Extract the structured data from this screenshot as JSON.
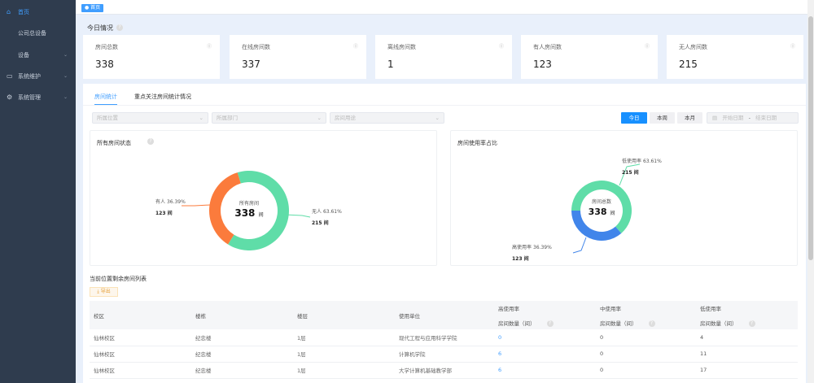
{
  "sidebar": {
    "items": [
      {
        "label": "首页",
        "icon": "home-icon",
        "active": true
      },
      {
        "label": "公司总设备"
      },
      {
        "label": "设备",
        "expandable": true
      },
      {
        "label": "系统维护",
        "icon": "monitor-icon",
        "expandable": true
      },
      {
        "label": "系统管理",
        "icon": "gear-icon",
        "expandable": true
      }
    ]
  },
  "breadcrumb_tag": "首页",
  "overview": {
    "title": "今日情况",
    "cards": [
      {
        "label": "房间总数",
        "value": "338"
      },
      {
        "label": "在线房间数",
        "value": "337"
      },
      {
        "label": "离线房间数",
        "value": "1"
      },
      {
        "label": "有人房间数",
        "value": "123"
      },
      {
        "label": "无人房间数",
        "value": "215"
      }
    ]
  },
  "tabs": [
    {
      "label": "房间统计",
      "active": true
    },
    {
      "label": "重点关注房间统计情况"
    }
  ],
  "filters": {
    "location": "所属位置",
    "department": "所属部门",
    "usage": "房间用途"
  },
  "range_buttons": [
    {
      "label": "今日",
      "active": true
    },
    {
      "label": "本周"
    },
    {
      "label": "本月"
    }
  ],
  "date_range": {
    "start": "开始日期",
    "sep": "-",
    "end": "结束日期"
  },
  "colors": {
    "accent": "#1890ff",
    "green": "#5fdda8",
    "orange": "#fb7b3c",
    "blue": "#4185ea"
  },
  "chart_data": [
    {
      "type": "pie",
      "title": "所有房间状态",
      "center_label": "所有房间",
      "center_value": "338",
      "center_unit": "间",
      "slices": [
        {
          "name": "无人",
          "percent": "63.61%",
          "value": 215,
          "value_label": "215 间",
          "color": "#5fdda8"
        },
        {
          "name": "有人",
          "percent": "36.39%",
          "value": 123,
          "value_label": "123 间",
          "color": "#fb7b3c"
        }
      ]
    },
    {
      "type": "pie",
      "title": "房间使用率占比",
      "center_label": "房间总数",
      "center_value": "338",
      "center_unit": "间",
      "slices": [
        {
          "name": "低使用率",
          "percent": "63.61%",
          "value": 215,
          "value_label": "215 间",
          "color": "#5fdda8"
        },
        {
          "name": "高使用率",
          "percent": "36.39%",
          "value": 123,
          "value_label": "123 间",
          "color": "#4185ea"
        }
      ]
    }
  ],
  "table": {
    "title": "当前位置剩余房间列表",
    "export_label": "导出",
    "headers": [
      "校区",
      "楼栋",
      "楼层",
      "使用单位",
      "高使用率",
      "中使用率",
      "低使用率"
    ],
    "subheader": "房间数量（间）",
    "rows": [
      [
        "仙林校区",
        "纪忠楼",
        "1层",
        "现代工程与应用科学学院",
        "0",
        "0",
        "4"
      ],
      [
        "仙林校区",
        "纪忠楼",
        "1层",
        "计算机学院",
        "6",
        "0",
        "11"
      ],
      [
        "仙林校区",
        "纪忠楼",
        "1层",
        "大学计算机基础教学部",
        "6",
        "0",
        "17"
      ]
    ]
  }
}
